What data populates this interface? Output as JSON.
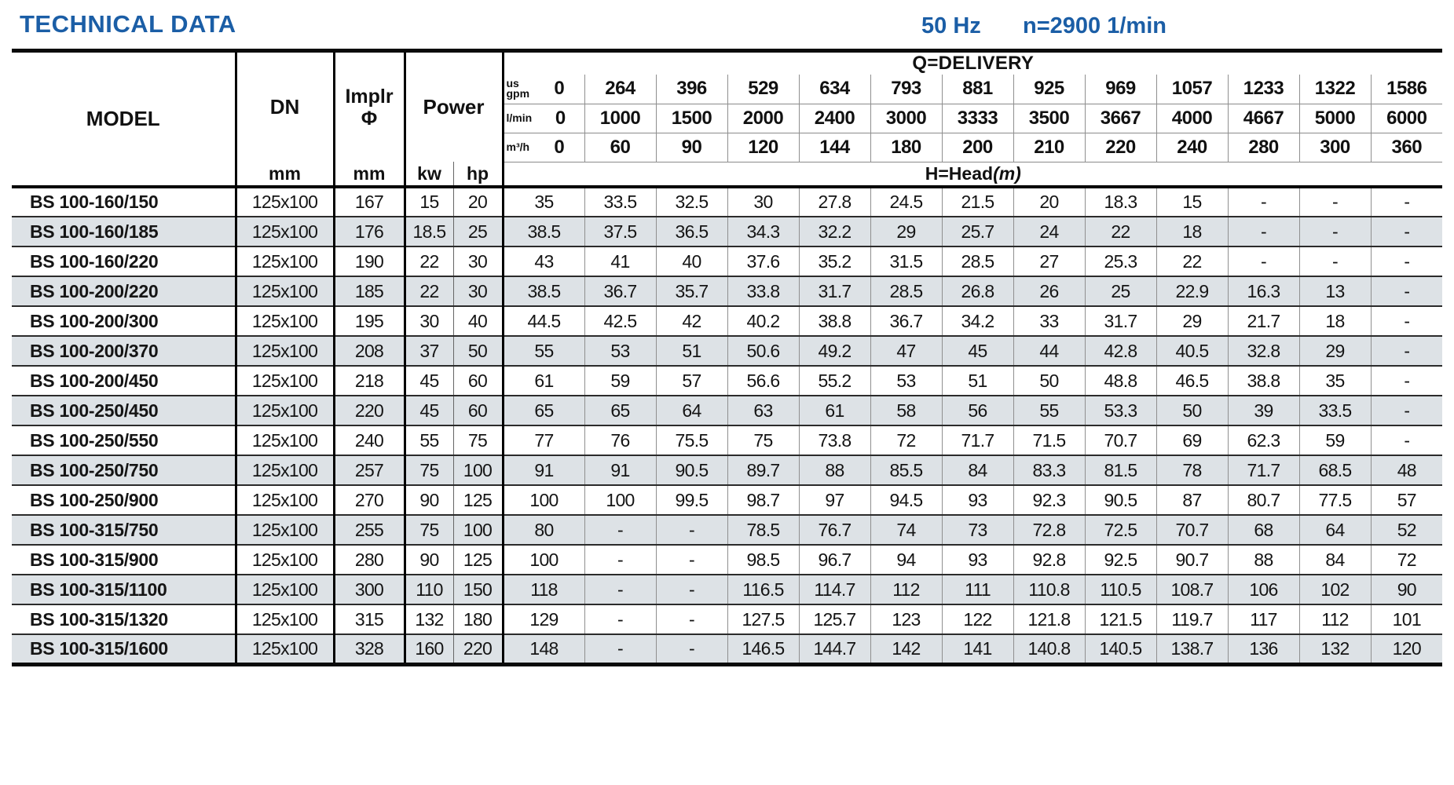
{
  "page": {
    "title": "TECHNICAL DATA",
    "frequency": "50 Hz",
    "speed": "n=2900 1/min"
  },
  "colors": {
    "accent_blue": "#1b5ea6",
    "row_shade": "#dde2e6"
  },
  "table": {
    "headers": {
      "model": "MODEL",
      "dn": "DN",
      "dn_unit": "mm",
      "implr_line1": "Implr",
      "implr_symbol": "Φ",
      "implr_unit": "mm",
      "power": "Power",
      "kw": "kw",
      "hp": "hp",
      "q_delivery": "Q=DELIVERY",
      "head": "H=Head",
      "head_unit": "(m)",
      "unit_rows": [
        {
          "label_top": "us",
          "label": "gpm",
          "values": [
            "0",
            "264",
            "396",
            "529",
            "634",
            "793",
            "881",
            "925",
            "969",
            "1057",
            "1233",
            "1322",
            "1586"
          ]
        },
        {
          "label": "l/min",
          "values": [
            "0",
            "1000",
            "1500",
            "2000",
            "2400",
            "3000",
            "3333",
            "3500",
            "3667",
            "4000",
            "4667",
            "5000",
            "6000"
          ]
        },
        {
          "label": "m³/h",
          "values": [
            "0",
            "60",
            "90",
            "120",
            "144",
            "180",
            "200",
            "210",
            "220",
            "240",
            "280",
            "300",
            "360"
          ]
        }
      ]
    },
    "rows": [
      {
        "model": "BS 100-160/150",
        "dn": "125x100",
        "implr": "167",
        "kw": "15",
        "hp": "20",
        "head": [
          "35",
          "33.5",
          "32.5",
          "30",
          "27.8",
          "24.5",
          "21.5",
          "20",
          "18.3",
          "15",
          "-",
          "-",
          "-"
        ]
      },
      {
        "model": "BS 100-160/185",
        "dn": "125x100",
        "implr": "176",
        "kw": "18.5",
        "hp": "25",
        "head": [
          "38.5",
          "37.5",
          "36.5",
          "34.3",
          "32.2",
          "29",
          "25.7",
          "24",
          "22",
          "18",
          "-",
          "-",
          "-"
        ]
      },
      {
        "model": "BS 100-160/220",
        "dn": "125x100",
        "implr": "190",
        "kw": "22",
        "hp": "30",
        "head": [
          "43",
          "41",
          "40",
          "37.6",
          "35.2",
          "31.5",
          "28.5",
          "27",
          "25.3",
          "22",
          "-",
          "-",
          "-"
        ]
      },
      {
        "model": "BS 100-200/220",
        "dn": "125x100",
        "implr": "185",
        "kw": "22",
        "hp": "30",
        "head": [
          "38.5",
          "36.7",
          "35.7",
          "33.8",
          "31.7",
          "28.5",
          "26.8",
          "26",
          "25",
          "22.9",
          "16.3",
          "13",
          "-"
        ]
      },
      {
        "model": "BS 100-200/300",
        "dn": "125x100",
        "implr": "195",
        "kw": "30",
        "hp": "40",
        "head": [
          "44.5",
          "42.5",
          "42",
          "40.2",
          "38.8",
          "36.7",
          "34.2",
          "33",
          "31.7",
          "29",
          "21.7",
          "18",
          "-"
        ]
      },
      {
        "model": "BS 100-200/370",
        "dn": "125x100",
        "implr": "208",
        "kw": "37",
        "hp": "50",
        "head": [
          "55",
          "53",
          "51",
          "50.6",
          "49.2",
          "47",
          "45",
          "44",
          "42.8",
          "40.5",
          "32.8",
          "29",
          "-"
        ]
      },
      {
        "model": "BS 100-200/450",
        "dn": "125x100",
        "implr": "218",
        "kw": "45",
        "hp": "60",
        "head": [
          "61",
          "59",
          "57",
          "56.6",
          "55.2",
          "53",
          "51",
          "50",
          "48.8",
          "46.5",
          "38.8",
          "35",
          "-"
        ]
      },
      {
        "model": "BS 100-250/450",
        "dn": "125x100",
        "implr": "220",
        "kw": "45",
        "hp": "60",
        "head": [
          "65",
          "65",
          "64",
          "63",
          "61",
          "58",
          "56",
          "55",
          "53.3",
          "50",
          "39",
          "33.5",
          "-"
        ]
      },
      {
        "model": "BS 100-250/550",
        "dn": "125x100",
        "implr": "240",
        "kw": "55",
        "hp": "75",
        "head": [
          "77",
          "76",
          "75.5",
          "75",
          "73.8",
          "72",
          "71.7",
          "71.5",
          "70.7",
          "69",
          "62.3",
          "59",
          "-"
        ]
      },
      {
        "model": "BS 100-250/750",
        "dn": "125x100",
        "implr": "257",
        "kw": "75",
        "hp": "100",
        "head": [
          "91",
          "91",
          "90.5",
          "89.7",
          "88",
          "85.5",
          "84",
          "83.3",
          "81.5",
          "78",
          "71.7",
          "68.5",
          "48"
        ]
      },
      {
        "model": "BS 100-250/900",
        "dn": "125x100",
        "implr": "270",
        "kw": "90",
        "hp": "125",
        "head": [
          "100",
          "100",
          "99.5",
          "98.7",
          "97",
          "94.5",
          "93",
          "92.3",
          "90.5",
          "87",
          "80.7",
          "77.5",
          "57"
        ]
      },
      {
        "model": "BS 100-315/750",
        "dn": "125x100",
        "implr": "255",
        "kw": "75",
        "hp": "100",
        "head": [
          "80",
          "-",
          "-",
          "78.5",
          "76.7",
          "74",
          "73",
          "72.8",
          "72.5",
          "70.7",
          "68",
          "64",
          "52"
        ]
      },
      {
        "model": "BS 100-315/900",
        "dn": "125x100",
        "implr": "280",
        "kw": "90",
        "hp": "125",
        "head": [
          "100",
          "-",
          "-",
          "98.5",
          "96.7",
          "94",
          "93",
          "92.8",
          "92.5",
          "90.7",
          "88",
          "84",
          "72"
        ]
      },
      {
        "model": "BS 100-315/1100",
        "dn": "125x100",
        "implr": "300",
        "kw": "110",
        "hp": "150",
        "head": [
          "118",
          "-",
          "-",
          "116.5",
          "114.7",
          "112",
          "111",
          "110.8",
          "110.5",
          "108.7",
          "106",
          "102",
          "90"
        ]
      },
      {
        "model": "BS 100-315/1320",
        "dn": "125x100",
        "implr": "315",
        "kw": "132",
        "hp": "180",
        "head": [
          "129",
          "-",
          "-",
          "127.5",
          "125.7",
          "123",
          "122",
          "121.8",
          "121.5",
          "119.7",
          "117",
          "112",
          "101"
        ]
      },
      {
        "model": "BS 100-315/1600",
        "dn": "125x100",
        "implr": "328",
        "kw": "160",
        "hp": "220",
        "head": [
          "148",
          "-",
          "-",
          "146.5",
          "144.7",
          "142",
          "141",
          "140.8",
          "140.5",
          "138.7",
          "136",
          "132",
          "120"
        ]
      }
    ]
  }
}
